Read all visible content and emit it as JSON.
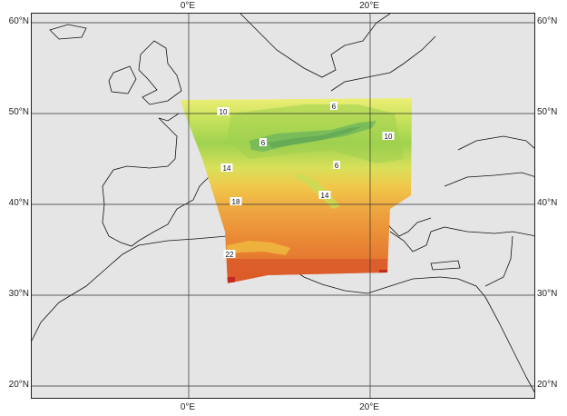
{
  "map": {
    "lon_ticks": [
      {
        "label": "0°E",
        "lon": 0
      },
      {
        "label": "20°E",
        "lon": 20
      }
    ],
    "lat_ticks": [
      {
        "label": "60°N",
        "lat": 60
      },
      {
        "label": "50°N",
        "lat": 50
      },
      {
        "label": "40°N",
        "lat": 40
      },
      {
        "label": "30°N",
        "lat": 30
      },
      {
        "label": "20°N",
        "lat": 20
      }
    ],
    "contour_labels": [
      {
        "text": "10",
        "lon": 3.8,
        "lat": 50.2
      },
      {
        "text": "6",
        "lon": 16,
        "lat": 50.8
      },
      {
        "text": "10",
        "lon": 22,
        "lat": 47.5
      },
      {
        "text": "6",
        "lon": 8.2,
        "lat": 46.8
      },
      {
        "text": "6",
        "lon": 16.3,
        "lat": 44.3
      },
      {
        "text": "14",
        "lon": 4.2,
        "lat": 44.0
      },
      {
        "text": "14",
        "lon": 15.0,
        "lat": 41.0
      },
      {
        "text": "18",
        "lon": 5.2,
        "lat": 40.3
      },
      {
        "text": "22",
        "lon": 4.5,
        "lat": 34.5
      }
    ],
    "colors": {
      "land": "#e5e5e5",
      "sea": "#e5e5e5",
      "coast": "#111111",
      "grid": "#333333",
      "field_cold": "#1f7a5a",
      "field_cool": "#6cc04a",
      "field_mild": "#c8e05a",
      "field_warm": "#f0c040",
      "field_hot": "#e97a2c",
      "field_hottest": "#d04020"
    }
  }
}
